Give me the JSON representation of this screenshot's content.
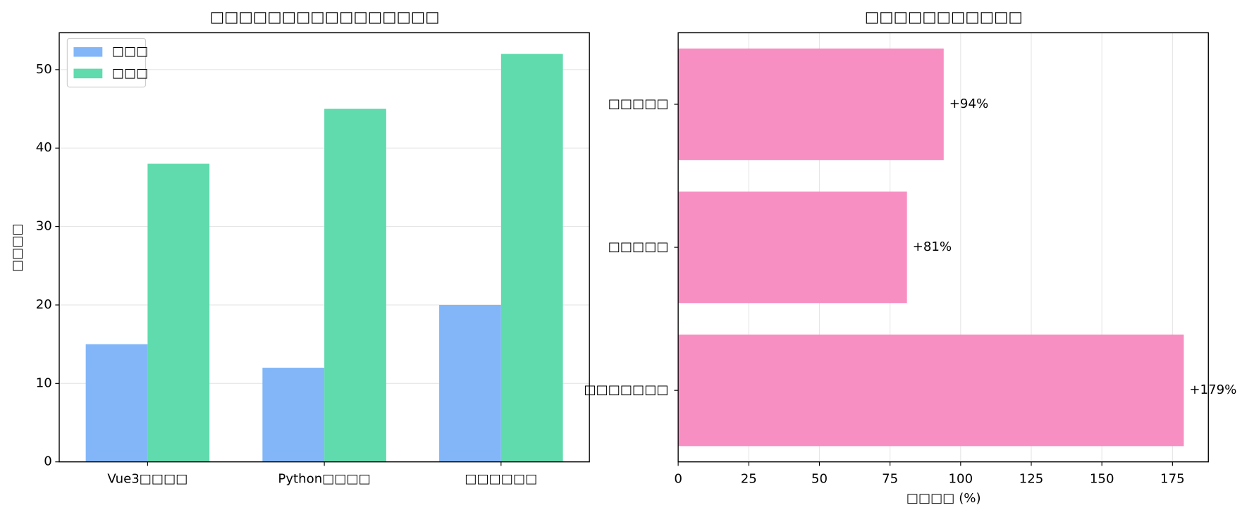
{
  "chart_data": [
    {
      "type": "bar",
      "title": "□□□□□□□□□□□□□□□□",
      "ylabel": "□□□□",
      "categories": [
        "Vue3□□□□",
        "Python□□□□",
        "□□□□□□"
      ],
      "series": [
        {
          "name": "□□□",
          "color": "#82b6f8",
          "values": [
            15,
            12,
            20
          ]
        },
        {
          "name": "□□□",
          "color": "#5fdbad",
          "values": [
            38,
            45,
            52
          ]
        }
      ],
      "ylim": [
        0,
        54.7
      ],
      "yticks": [
        0,
        10,
        20,
        30,
        40,
        50
      ],
      "grid": true,
      "legend": "upper-left"
    },
    {
      "type": "barh",
      "title": "□□□□□□□□□□□",
      "xlabel": "□□□□ (%)",
      "categories": [
        "□□□□□",
        "□□□□□",
        "□□□□□□□"
      ],
      "values": [
        94,
        81,
        179
      ],
      "value_labels": [
        "+94%",
        "+81%",
        "+179%"
      ],
      "color": "#f78fc3",
      "xlim": [
        0,
        187.7
      ],
      "xticks": [
        0,
        25,
        50,
        75,
        100,
        125,
        150,
        175
      ],
      "grid": true
    }
  ]
}
